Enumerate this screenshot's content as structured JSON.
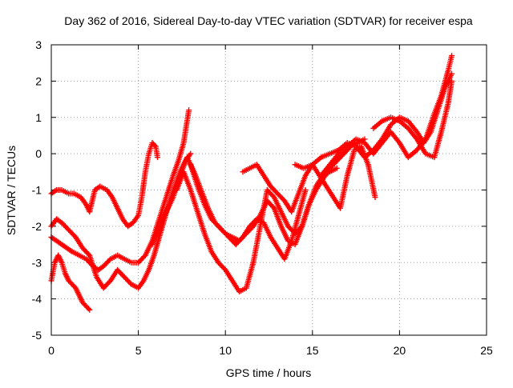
{
  "chart_data": {
    "type": "scatter",
    "title": "Day 362 of 2016, Sidereal Day-to-day VTEC variation (SDTVAR) for receiver espa",
    "xlabel": "GPS time / hours",
    "ylabel": "SDTVAR / TECUs",
    "xlim": [
      0,
      25
    ],
    "ylim": [
      -5,
      3
    ],
    "xticks": [
      0,
      5,
      10,
      15,
      20,
      25
    ],
    "yticks": [
      -5,
      -4,
      -3,
      -2,
      -1,
      0,
      1,
      2,
      3
    ],
    "xtick_labels": [
      "0",
      "5",
      "10",
      "15",
      "20",
      "25"
    ],
    "ytick_labels": [
      "-5",
      "-4",
      "-3",
      "-2",
      "-1",
      "0",
      "1",
      "2",
      "3"
    ],
    "grid": true,
    "marker": "+",
    "color": "#ff0000",
    "series": [
      {
        "x": [
          0.0,
          0.3,
          0.6,
          1.0,
          1.3,
          1.7,
          2.0,
          2.2,
          2.5,
          2.8,
          3.2,
          3.5,
          3.8,
          4.1,
          4.4,
          4.7,
          5.0,
          5.2,
          5.4,
          5.6,
          5.8,
          6.0,
          6.1
        ],
        "y": [
          -1.1,
          -1.0,
          -1.0,
          -1.1,
          -1.1,
          -1.2,
          -1.4,
          -1.6,
          -1.0,
          -0.9,
          -1.0,
          -1.2,
          -1.5,
          -1.8,
          -2.0,
          -1.9,
          -1.7,
          -1.2,
          -0.5,
          0.0,
          0.3,
          0.2,
          -0.1
        ]
      },
      {
        "x": [
          0.0,
          0.2,
          0.4,
          0.6,
          0.8,
          1.0,
          1.2,
          1.4,
          1.6,
          1.8,
          2.0,
          2.2
        ],
        "y": [
          -3.5,
          -3.0,
          -2.8,
          -3.0,
          -3.3,
          -3.5,
          -3.6,
          -3.7,
          -3.9,
          -4.1,
          -4.2,
          -4.3
        ]
      },
      {
        "x": [
          0.0,
          0.3,
          0.6,
          0.9,
          1.2,
          1.6,
          2.0,
          2.4,
          2.7,
          3.0,
          3.4,
          3.8,
          4.2,
          4.6,
          5.0,
          5.4,
          5.8,
          6.2,
          6.6,
          7.0,
          7.3,
          7.6,
          7.9
        ],
        "y": [
          -2.3,
          -2.4,
          -2.5,
          -2.6,
          -2.7,
          -2.8,
          -2.9,
          -3.1,
          -3.2,
          -3.1,
          -2.9,
          -2.8,
          -2.9,
          -3.0,
          -3.0,
          -2.8,
          -2.4,
          -1.8,
          -1.2,
          -0.6,
          -0.2,
          0.3,
          1.2
        ]
      },
      {
        "x": [
          0.0,
          0.3,
          0.6,
          1.0,
          1.4,
          1.8,
          2.2,
          2.6,
          3.0,
          3.4,
          3.8,
          4.2,
          4.6,
          5.0,
          5.3,
          5.6,
          5.9,
          6.2,
          6.5,
          6.8,
          7.1,
          7.4,
          7.7,
          8.0
        ],
        "y": [
          -2.0,
          -1.8,
          -1.9,
          -2.1,
          -2.3,
          -2.6,
          -2.8,
          -3.4,
          -3.7,
          -3.5,
          -3.2,
          -3.4,
          -3.6,
          -3.7,
          -3.5,
          -3.2,
          -2.8,
          -2.3,
          -1.8,
          -1.3,
          -0.9,
          -0.5,
          -0.2,
          0.0
        ]
      },
      {
        "x": [
          5.8,
          6.2,
          6.6,
          7.0,
          7.4,
          7.8,
          8.2,
          8.6,
          9.0,
          9.4,
          9.8,
          10.2,
          10.6,
          11.0,
          11.4,
          11.8,
          12.2,
          12.6,
          13.0,
          13.4,
          13.8,
          14.2,
          14.6
        ],
        "y": [
          -2.5,
          -2.0,
          -1.6,
          -1.2,
          -0.6,
          -0.1,
          -0.5,
          -1.0,
          -1.5,
          -1.9,
          -2.1,
          -2.3,
          -2.5,
          -2.3,
          -2.0,
          -1.8,
          -1.9,
          -2.3,
          -2.6,
          -2.9,
          -2.4,
          -1.7,
          -1.0
        ]
      },
      {
        "x": [
          7.2,
          7.6,
          8.0,
          8.4,
          8.8,
          9.2,
          9.6,
          10.0,
          10.4,
          10.8,
          11.2,
          11.6,
          12.0,
          12.4,
          12.8,
          13.2,
          13.6,
          14.0,
          14.4,
          14.8,
          15.2,
          15.6,
          16.0,
          16.4
        ],
        "y": [
          -1.0,
          -0.5,
          -1.0,
          -1.6,
          -2.2,
          -2.7,
          -3.0,
          -3.2,
          -3.5,
          -3.8,
          -3.7,
          -3.0,
          -2.0,
          -1.0,
          -1.2,
          -1.6,
          -2.0,
          -2.2,
          -2.0,
          -1.4,
          -0.9,
          -0.6,
          -0.5,
          -0.4
        ]
      },
      {
        "x": [
          8.0,
          8.4,
          8.8,
          9.2,
          9.6,
          10.0,
          10.4,
          10.8,
          11.2,
          11.6,
          12.0,
          12.4,
          12.8,
          13.2,
          13.6,
          14.0,
          14.4,
          14.8,
          15.2,
          15.6,
          16.0,
          16.4,
          16.8,
          17.2,
          17.6,
          18.0
        ],
        "y": [
          -0.3,
          -0.9,
          -1.4,
          -1.8,
          -2.0,
          -2.2,
          -2.3,
          -2.4,
          -2.2,
          -2.0,
          -1.7,
          -1.3,
          -1.5,
          -2.0,
          -2.4,
          -2.5,
          -2.0,
          -1.4,
          -1.0,
          -0.7,
          -0.4,
          -0.2,
          0.0,
          0.2,
          0.3,
          0.4
        ]
      },
      {
        "x": [
          11.0,
          11.4,
          11.8,
          12.2,
          12.6,
          13.0,
          13.4,
          13.8,
          14.2,
          14.6,
          15.0,
          15.4,
          15.8,
          16.2,
          16.6,
          17.0,
          17.4,
          17.8,
          18.2,
          18.6
        ],
        "y": [
          -0.5,
          -0.4,
          -0.3,
          -0.6,
          -0.9,
          -1.1,
          -1.3,
          -1.6,
          -1.1,
          -0.6,
          -0.3,
          -0.6,
          -0.9,
          -1.2,
          -1.5,
          -0.6,
          0.1,
          0.2,
          -0.3,
          -1.2
        ]
      },
      {
        "x": [
          14.0,
          14.5,
          15.0,
          15.5,
          16.0,
          16.5,
          17.0,
          17.5,
          18.0,
          18.5,
          19.0,
          19.5,
          20.0,
          20.5,
          21.0,
          21.4,
          21.8,
          22.2,
          22.6,
          23.0
        ],
        "y": [
          -0.3,
          -0.4,
          -0.3,
          -0.1,
          0.0,
          0.1,
          0.3,
          0.2,
          -0.1,
          0.1,
          0.4,
          0.8,
          1.0,
          0.9,
          0.6,
          0.3,
          0.6,
          1.2,
          1.8,
          2.2
        ]
      },
      {
        "x": [
          15.5,
          16.0,
          16.5,
          17.0,
          17.5,
          18.0,
          18.5,
          19.0,
          19.5,
          20.0,
          20.5,
          21.0,
          21.5,
          22.0,
          22.4,
          22.8,
          23.0
        ],
        "y": [
          -0.6,
          -0.3,
          0.0,
          0.2,
          0.4,
          0.3,
          0.0,
          0.3,
          0.6,
          0.3,
          -0.1,
          0.1,
          0.4,
          1.1,
          1.6,
          2.3,
          2.7
        ]
      },
      {
        "x": [
          18.5,
          19.0,
          19.5,
          20.0,
          20.5,
          21.0,
          21.5,
          22.0,
          22.4,
          22.8,
          23.0
        ],
        "y": [
          0.7,
          0.9,
          1.0,
          0.9,
          0.7,
          0.4,
          0.0,
          -0.1,
          0.6,
          1.4,
          2.0
        ]
      }
    ]
  }
}
